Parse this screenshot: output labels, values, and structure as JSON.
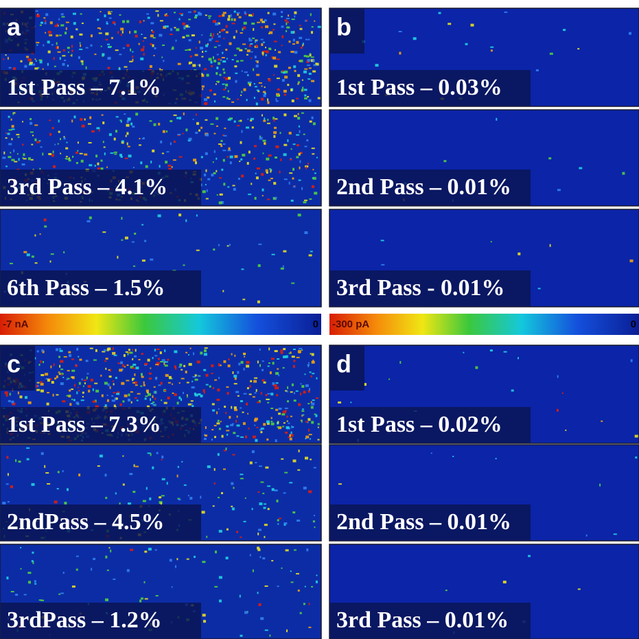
{
  "panels": [
    {
      "letter": "a",
      "images": [
        {
          "label": "1st Pass – 7.1%"
        },
        {
          "label": "3rd Pass – 4.1%"
        },
        {
          "label": "6th Pass – 1.5%"
        }
      ]
    },
    {
      "letter": "b",
      "images": [
        {
          "label": "1st Pass – 0.03%"
        },
        {
          "label": "2nd Pass – 0.01%"
        },
        {
          "label": "3rd Pass - 0.01%"
        }
      ]
    },
    {
      "letter": "c",
      "images": [
        {
          "label": "1st Pass – 7.3%"
        },
        {
          "label": "2ndPass – 4.5%"
        },
        {
          "label": "3rdPass – 1.2%"
        }
      ]
    },
    {
      "letter": "d",
      "images": [
        {
          "label": "1st Pass – 0.02%"
        },
        {
          "label": "2nd Pass – 0.01%"
        },
        {
          "label": "3rd Pass – 0.01%"
        }
      ]
    }
  ],
  "colorbars": [
    {
      "min_label": "-7 nA",
      "max_label": "0"
    },
    {
      "min_label": "-300 pA",
      "max_label": "0"
    }
  ]
}
